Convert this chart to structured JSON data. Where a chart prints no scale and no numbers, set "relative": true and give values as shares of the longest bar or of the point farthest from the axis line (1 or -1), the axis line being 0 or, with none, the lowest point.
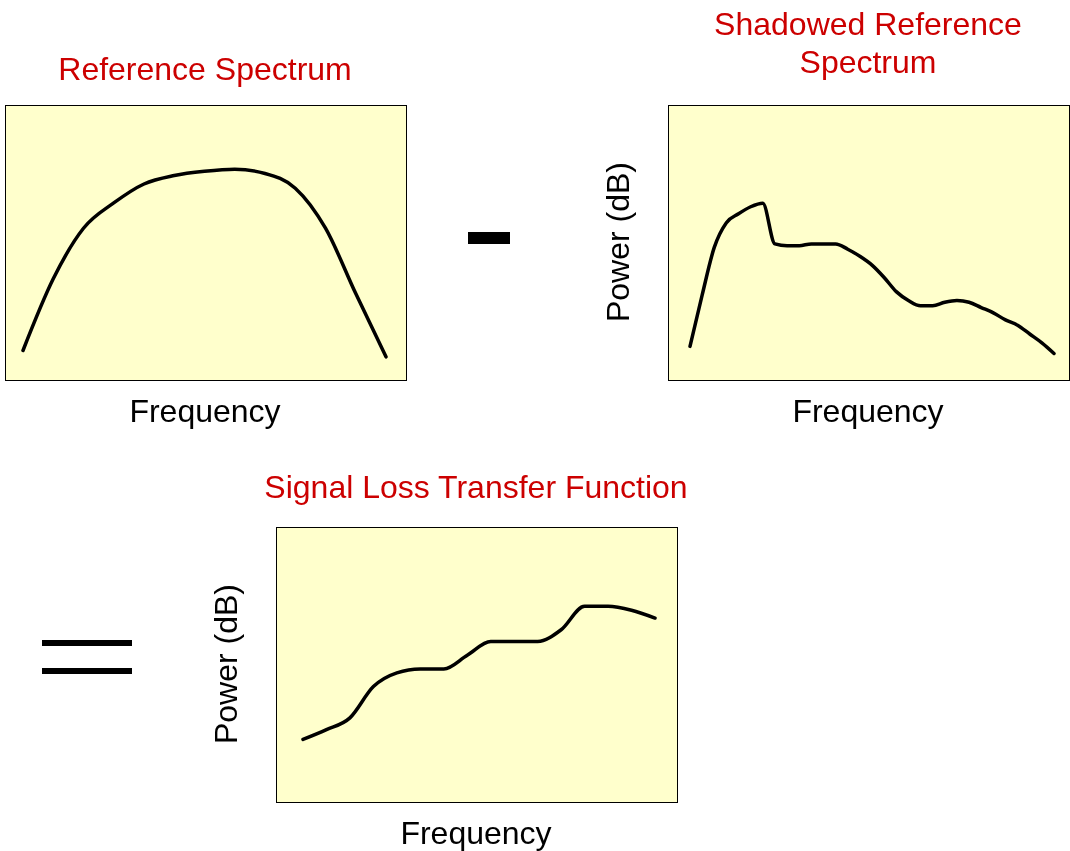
{
  "chart_data": [
    {
      "type": "line",
      "title": "Reference Spectrum",
      "xlabel": "Frequency",
      "relative": true,
      "categories": [
        null,
        null,
        null,
        null,
        null,
        null,
        null,
        null,
        null,
        null,
        null,
        null,
        null
      ],
      "series": [
        {
          "color": "#000000",
          "values": [
            0.14,
            0.48,
            0.72,
            0.84,
            0.93,
            0.97,
            0.99,
            1,
            0.98,
            0.91,
            0.72,
            0.41,
            0.11
          ]
        }
      ]
    },
    {
      "type": "line",
      "title": "Shadowed Reference Spectrum",
      "xlabel": "Frequency",
      "ylabel": "Power (dB)",
      "relative": true,
      "categories": [
        null,
        null,
        null,
        null,
        null,
        null,
        null,
        null,
        null,
        null,
        null,
        null,
        null,
        null,
        null,
        null,
        null,
        null,
        null,
        null,
        null,
        null,
        null,
        null,
        null,
        null,
        null,
        null,
        null,
        null,
        null
      ],
      "series": [
        {
          "color": "#000000",
          "values": [
            0.19,
            0.48,
            0.75,
            0.89,
            0.94,
            0.98,
            1,
            0.77,
            0.76,
            0.76,
            0.77,
            0.77,
            0.77,
            0.74,
            0.7,
            0.65,
            0.58,
            0.5,
            0.45,
            0.42,
            0.42,
            0.44,
            0.45,
            0.44,
            0.41,
            0.38,
            0.34,
            0.31,
            0.26,
            0.21,
            0.15
          ]
        }
      ]
    },
    {
      "type": "line",
      "title": "Signal Loss Transfer Function",
      "xlabel": "Frequency",
      "ylabel": "Power (dB)",
      "relative": true,
      "categories": [
        null,
        null,
        null,
        null,
        null,
        null,
        null,
        null,
        null,
        null,
        null,
        null,
        null,
        null,
        null,
        null
      ],
      "series": [
        {
          "color": "#000000",
          "values": [
            0.32,
            0.37,
            0.43,
            0.59,
            0.66,
            0.68,
            0.68,
            0.75,
            0.82,
            0.82,
            0.82,
            0.88,
            1,
            1,
            0.98,
            0.94
          ]
        }
      ]
    }
  ]
}
